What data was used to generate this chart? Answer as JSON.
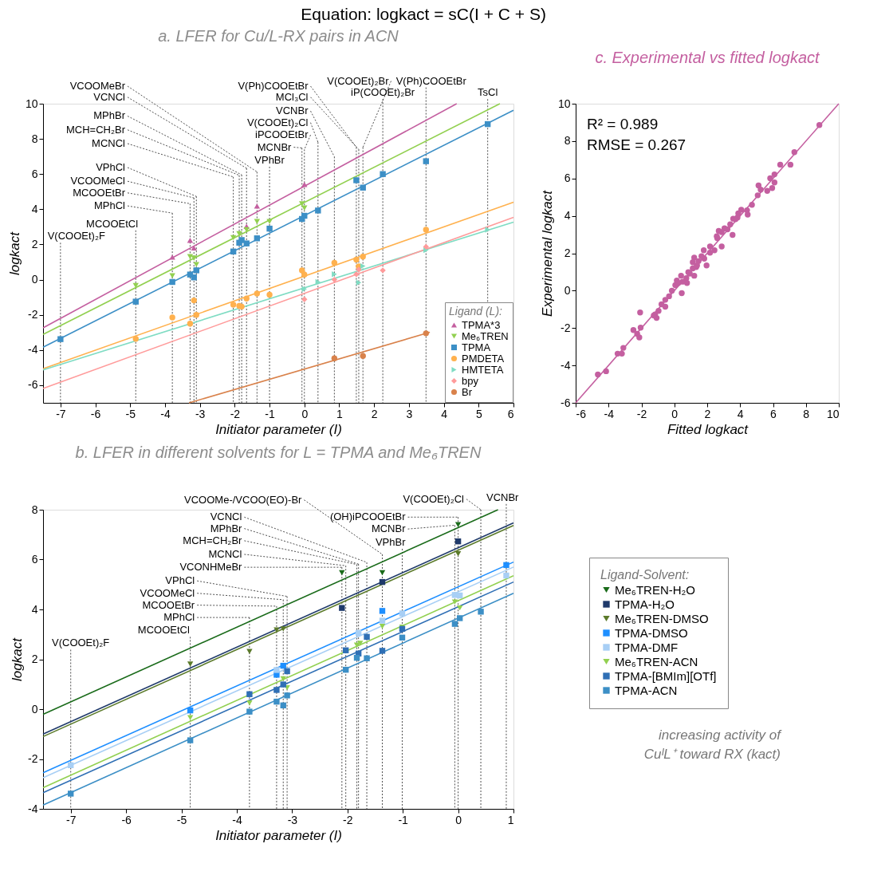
{
  "chart_data": [
    {
      "type": "scatter",
      "title": "a. LFER for Cu/L-RX pairs in ACN",
      "xlabel": "Initiator parameter (I)",
      "ylabel": "logkact",
      "legend_title": "Ligand (L):",
      "legend": "bottom right",
      "xlim": [
        -7.5,
        6
      ],
      "ylim": [
        -7,
        10
      ],
      "xticks": [
        -7,
        -6,
        -5,
        -4,
        -3,
        -2,
        -1,
        0,
        1,
        2,
        3,
        4,
        5,
        6
      ],
      "yticks": [
        -6,
        -4,
        -2,
        0,
        2,
        4,
        6,
        8,
        10
      ],
      "series": [
        {
          "type": "line",
          "color": "#c45fa0",
          "x": [
            -7.5,
            4.37
          ],
          "values": [
            -2.74,
            10
          ]
        },
        {
          "type": "line",
          "color": "#92d050",
          "x": [
            -7.5,
            5.61
          ],
          "values": [
            -3.11,
            10
          ]
        },
        {
          "type": "line",
          "color": "#3c8fc6",
          "x": [
            -7.5,
            6
          ],
          "values": [
            -3.84,
            9.63
          ]
        },
        {
          "type": "line",
          "color": "#ffb14e",
          "x": [
            -7.5,
            6
          ],
          "values": [
            -5.06,
            4.4
          ]
        },
        {
          "type": "line",
          "color": "#7fdcc3",
          "x": [
            -7.5,
            6
          ],
          "values": [
            -5.13,
            3.27
          ]
        },
        {
          "type": "line",
          "color": "#ff9b9b",
          "x": [
            -7.5,
            6
          ],
          "values": [
            -6.18,
            3.54
          ]
        },
        {
          "type": "line",
          "color": "#d9824b",
          "x": [
            -3.31,
            3.6
          ],
          "values": [
            -7,
            -2.99
          ]
        },
        {
          "name": "TPMA*3",
          "color": "#c45fa0",
          "marker": "triangle",
          "x": [
            -3.79,
            -3.28,
            -3.17,
            -1.66,
            -1.36,
            0.0
          ],
          "values": [
            1.28,
            2.24,
            1.8,
            3.03,
            4.18,
            5.41
          ]
        },
        {
          "name": "Me₆TREN",
          "color": "#92d050",
          "marker": "triangle-down",
          "x": [
            -4.84,
            -3.79,
            -3.28,
            -3.17,
            -3.1,
            -2.04,
            -1.87,
            -1.66,
            -1.36,
            -1.0,
            -0.07,
            0.0
          ],
          "values": [
            -0.33,
            0.22,
            1.31,
            1.23,
            0.86,
            2.39,
            2.61,
            2.84,
            3.3,
            3.3,
            4.31,
            4.07
          ]
        },
        {
          "name": "TPMA",
          "color": "#3c8fc6",
          "marker": "square",
          "x": [
            -7.0,
            -4.84,
            -3.79,
            -3.28,
            -3.17,
            -3.1,
            -2.04,
            -1.87,
            -1.8,
            -1.66,
            -1.36,
            -1.0,
            -0.07,
            0.0,
            0.39,
            1.49,
            1.68,
            2.25,
            3.49,
            5.26
          ],
          "values": [
            -3.38,
            -1.25,
            -0.13,
            0.29,
            0.13,
            0.53,
            1.6,
            2.1,
            2.25,
            2.06,
            2.35,
            2.9,
            3.45,
            3.63,
            3.93,
            5.65,
            5.23,
            6.0,
            6.73,
            8.84
          ]
        },
        {
          "name": "PMDETA",
          "color": "#ffb14e",
          "marker": "circle",
          "x": [
            -4.84,
            -3.79,
            -3.28,
            -3.17,
            -3.1,
            -2.04,
            -1.87,
            -1.8,
            -1.66,
            -1.36,
            -1.0,
            -0.07,
            0.0,
            0.86,
            1.49,
            1.56,
            1.68,
            3.49
          ],
          "values": [
            -3.36,
            -2.15,
            -2.5,
            -1.18,
            -2.0,
            -1.42,
            -1.49,
            -1.53,
            -1.07,
            -0.79,
            -0.86,
            0.53,
            0.29,
            0.96,
            1.14,
            0.75,
            1.31,
            2.84
          ]
        },
        {
          "name": "HMTETA",
          "color": "#7fdcc3",
          "marker": "triangle-right",
          "x": [
            0.0,
            0.39,
            0.86,
            1.56,
            1.68,
            3.49,
            5.26
          ],
          "values": [
            -0.53,
            -0.13,
            0.31,
            -0.17,
            0.77,
            1.68,
            2.84
          ]
        },
        {
          "name": "bpy",
          "color": "#ff9b9b",
          "marker": "diamond",
          "x": [
            0.0,
            0.86,
            1.49,
            1.56,
            2.25,
            3.49
          ],
          "values": [
            -1.12,
            0.0,
            0.31,
            0.57,
            0.53,
            1.87
          ]
        },
        {
          "name": "Br",
          "color": "#d9824b",
          "marker": "circle",
          "x": [
            0.86,
            1.68,
            3.49
          ],
          "values": [
            -4.47,
            -4.34,
            -3.05
          ]
        }
      ],
      "ref_lines": [
        {
          "axis": "x",
          "value": -7.0,
          "label": "V(COOEt)₂F",
          "line_style": "dotted"
        },
        {
          "axis": "x",
          "value": -4.84,
          "label": "MCOOEtCl",
          "line_style": "dotted"
        },
        {
          "axis": "x",
          "value": -3.79,
          "label": "MPhCl",
          "line_style": "dotted"
        },
        {
          "axis": "x",
          "value": -3.28,
          "label": "MCOOEtBr",
          "line_style": "dotted"
        },
        {
          "axis": "x",
          "value": -3.17,
          "label": "VCOOMeCl",
          "line_style": "dotted"
        },
        {
          "axis": "x",
          "value": -3.1,
          "label": "VPhCl",
          "line_style": "dotted"
        },
        {
          "axis": "x",
          "value": -2.04,
          "label": "MCNCl",
          "line_style": "dotted"
        },
        {
          "axis": "x",
          "value": -1.87,
          "label": "MCH=CH₂Br",
          "line_style": "dotted"
        },
        {
          "axis": "x",
          "value": -1.8,
          "label": "MPhBr",
          "line_style": "dotted"
        },
        {
          "axis": "x",
          "value": -1.66,
          "label": "VCNCl",
          "line_style": "dotted"
        },
        {
          "axis": "x",
          "value": -1.36,
          "label": "VCOOMeBr",
          "line_style": "dotted"
        },
        {
          "axis": "x",
          "value": -1.0,
          "label": "VPhBr",
          "line_style": "dotted"
        },
        {
          "axis": "x",
          "value": -0.07,
          "label": "MCNBr",
          "line_style": "dotted"
        },
        {
          "axis": "x",
          "value": 0.0,
          "label": "iPCOOEtBr",
          "line_style": "dotted"
        },
        {
          "axis": "x",
          "value": 0.39,
          "label": "V(COOEt)₂Cl",
          "line_style": "dotted"
        },
        {
          "axis": "x",
          "value": 0.86,
          "label": "VCNBr",
          "line_style": "dotted"
        },
        {
          "axis": "x",
          "value": 1.49,
          "label": "V(Ph)COOEtBr",
          "line_style": "dotted"
        },
        {
          "axis": "x",
          "value": 1.56,
          "label": "MCl₃Cl",
          "line_style": "dotted"
        },
        {
          "axis": "x",
          "value": 1.68,
          "label": "V(COOEt)₂Br",
          "line_style": "dotted"
        },
        {
          "axis": "x",
          "value": 2.25,
          "label": "iP(COOEt)₂Br",
          "line_style": "dotted"
        },
        {
          "axis": "x",
          "value": 3.49,
          "label": "V(Ph)COOEtBr",
          "line_style": "dotted"
        },
        {
          "axis": "x",
          "value": 5.26,
          "label": "TsCl",
          "line_style": "dotted"
        }
      ],
      "annotations": [
        "Equation: logkact = sC(I + C + S)"
      ]
    },
    {
      "type": "scatter",
      "title": "c. Experimental vs fitted logkact",
      "xlabel": "Fitted logkact",
      "ylabel": "Experimental logkact",
      "xlim": [
        -6,
        10
      ],
      "ylim": [
        -6,
        10
      ],
      "xticks": [
        -6,
        -4,
        -2,
        0,
        2,
        4,
        6,
        8,
        10
      ],
      "yticks": [
        -6,
        -4,
        -2,
        0,
        2,
        4,
        6,
        8,
        10
      ],
      "series": [
        {
          "type": "line",
          "color": "#c45fa0",
          "x": [
            -6,
            10
          ],
          "values": [
            -6,
            10
          ]
        },
        {
          "color": "#c45fa0",
          "marker": "circle",
          "x": [
            8.82,
            7.3,
            6.44,
            7.06,
            5.83,
            6.09,
            6.09,
            5.95,
            5.12,
            5.25,
            5.65,
            5.07,
            4.72,
            4.42,
            4.46,
            3.89,
            3.84,
            3.58,
            3.4,
            3.54,
            3.05,
            2.88,
            2.7,
            2.58,
            2.88,
            2.44,
            2.17,
            1.82,
            1.96,
            1.79,
            1.47,
            1.21,
            1.12,
            1.33,
            1.21,
            0.85,
            0.73,
            0.41,
            0.5,
            0.15,
            0.06,
            0.45,
            -0.15,
            -0.32,
            -0.55,
            -0.78,
            -0.55,
            -0.96,
            -2.08,
            -1.17,
            -1.08,
            -1.25,
            -2.05,
            -2.49,
            -2.26,
            -2.13,
            -3.1,
            -3.45,
            -3.19,
            -4.15,
            -4.65,
            0.94,
            1.12,
            1.38,
            0.77,
            1.65,
            0.24,
            2.17,
            2.61,
            3.23,
            3.72,
            4.07
          ],
          "values": [
            8.86,
            7.41,
            6.74,
            6.74,
            6.01,
            6.22,
            5.79,
            5.49,
            5.63,
            5.4,
            5.34,
            5.1,
            4.59,
            4.3,
            4.07,
            4.13,
            3.91,
            3.85,
            3.55,
            2.98,
            3.33,
            3.13,
            3.2,
            2.91,
            2.36,
            2.16,
            2.36,
            1.71,
            1.35,
            2.16,
            1.58,
            1.77,
            1.52,
            1.26,
            0.8,
            0.99,
            0.67,
            0.8,
            0.48,
            0.54,
            0.29,
            -0.13,
            0.0,
            -0.3,
            -0.49,
            -0.73,
            -0.86,
            -1.08,
            -1.17,
            -1.27,
            -1.46,
            -1.33,
            -1.98,
            -2.11,
            -2.31,
            -2.5,
            -3.06,
            -3.37,
            -3.37,
            -4.31,
            -4.48,
            0.91,
            1.19,
            1.35,
            0.41,
            1.84,
            0.41,
            2.03,
            2.81,
            3.28,
            3.82,
            4.33
          ]
        }
      ],
      "annotations": [
        "R² = 0.989",
        "RMSE = 0.267"
      ]
    },
    {
      "type": "scatter",
      "title": "b. LFER in different solvents for L = TPMA and Me₆TREN",
      "xlabel": "Initiator parameter (I)",
      "ylabel": "logkact",
      "legend_title": "Ligand-Solvent:",
      "legend": "right",
      "xlim": [
        -7.5,
        1
      ],
      "ylim": [
        -4,
        8
      ],
      "xticks": [
        -7,
        -6,
        -5,
        -4,
        -3,
        -2,
        -1,
        0,
        1
      ],
      "yticks": [
        -4,
        -2,
        0,
        2,
        4,
        6,
        8
      ],
      "series": [
        {
          "type": "line",
          "color": "#1a6b1a",
          "x": [
            -7.5,
            0.72
          ],
          "values": [
            -0.21,
            8
          ]
        },
        {
          "type": "line",
          "color": "#1f3a6b",
          "x": [
            -7.5,
            1
          ],
          "values": [
            -1.0,
            7.47
          ]
        },
        {
          "type": "line",
          "color": "#5b7a2a",
          "x": [
            -7.5,
            1
          ],
          "values": [
            -1.1,
            7.37
          ]
        },
        {
          "type": "line",
          "color": "#1e8fff",
          "x": [
            -7.5,
            1
          ],
          "values": [
            -2.55,
            5.9
          ]
        },
        {
          "type": "line",
          "color": "#a8cff5",
          "x": [
            -7.5,
            1
          ],
          "values": [
            -2.75,
            5.7
          ]
        },
        {
          "type": "line",
          "color": "#92d050",
          "x": [
            -7.5,
            1
          ],
          "values": [
            -3.15,
            5.35
          ]
        },
        {
          "type": "line",
          "color": "#2f6fb5",
          "x": [
            -7.5,
            1
          ],
          "values": [
            -3.35,
            5.1
          ]
        },
        {
          "type": "line",
          "color": "#3c8fc6",
          "x": [
            -7.5,
            1
          ],
          "values": [
            -3.85,
            4.65
          ]
        },
        {
          "name": "Me₆TREN-H₂O",
          "color": "#1a6b1a",
          "marker": "triangle-down",
          "x": [
            -2.1,
            -1.37,
            0.0
          ],
          "values": [
            5.47,
            5.47,
            7.4
          ]
        },
        {
          "name": "TPMA-H₂O",
          "color": "#1f3a6b",
          "marker": "square",
          "x": [
            -2.1,
            -1.37,
            0.0
          ],
          "values": [
            4.06,
            5.1,
            6.73
          ]
        },
        {
          "name": "Me₆TREN-DMSO",
          "color": "#5b7a2a",
          "marker": "triangle-down",
          "x": [
            -4.84,
            -3.77,
            -3.28,
            -3.16,
            0.0
          ],
          "values": [
            1.81,
            2.31,
            3.18,
            3.22,
            6.23
          ]
        },
        {
          "name": "TPMA-DMSO",
          "color": "#1e8fff",
          "marker": "square",
          "x": [
            -4.84,
            -3.28,
            -3.16,
            -1.37,
            0.87
          ],
          "values": [
            -0.05,
            1.38,
            1.74,
            3.94,
            5.78
          ]
        },
        {
          "name": "TPMA-DMF",
          "color": "#a8cff5",
          "marker": "square",
          "x": [
            -7.0,
            -3.28,
            -1.8,
            -1.37,
            -1.01,
            -0.06,
            0.03,
            0.87
          ],
          "values": [
            -2.25,
            1.57,
            3.06,
            3.55,
            3.84,
            4.58,
            4.56,
            5.36
          ]
        },
        {
          "name": "Me₆TREN-ACN",
          "color": "#92d050",
          "marker": "triangle-down",
          "x": [
            -4.84,
            -3.77,
            -3.16,
            -3.09,
            -1.83,
            -1.77,
            -1.37,
            -1.01,
            -0.06,
            0.03
          ],
          "values": [
            -0.34,
            0.25,
            1.22,
            0.86,
            2.57,
            2.64,
            3.32,
            3.29,
            4.3,
            4.06
          ]
        },
        {
          "name": "TPMA-[BMIm][OTf]",
          "color": "#2f6fb5",
          "marker": "square",
          "x": [
            -3.77,
            -3.28,
            -3.16,
            -3.09,
            -2.03,
            -1.8,
            -1.65,
            -1.37,
            -1.01
          ],
          "values": [
            0.6,
            0.77,
            0.99,
            1.52,
            2.36,
            2.23,
            2.9,
            2.34,
            3.22
          ]
        },
        {
          "name": "TPMA-ACN",
          "color": "#3c8fc6",
          "marker": "square",
          "x": [
            -7.0,
            -4.84,
            -3.77,
            -3.28,
            -3.16,
            -3.09,
            -2.03,
            -1.83,
            -1.65,
            -1.01,
            -0.06,
            0.03,
            0.41
          ],
          "values": [
            -3.39,
            -1.25,
            -0.1,
            0.3,
            0.15,
            0.55,
            1.58,
            2.06,
            2.04,
            2.87,
            3.42,
            3.65,
            3.91
          ]
        }
      ],
      "ref_lines": [
        {
          "axis": "x",
          "value": -7.0,
          "label": "V(COOEt)₂F",
          "line_style": "dotted"
        },
        {
          "axis": "x",
          "value": -4.84,
          "label": "MCOOEtCl",
          "line_style": "dotted"
        },
        {
          "axis": "x",
          "value": -3.77,
          "label": "MPhCl",
          "line_style": "dotted"
        },
        {
          "axis": "x",
          "value": -3.28,
          "label": "MCOOEtBr",
          "line_style": "dotted"
        },
        {
          "axis": "x",
          "value": -3.16,
          "label": "VCOOMeCl",
          "line_style": "dotted"
        },
        {
          "axis": "x",
          "value": -3.09,
          "label": "VPhCl",
          "line_style": "dotted"
        },
        {
          "axis": "x",
          "value": -2.1,
          "label": "VCONHMeBr",
          "line_style": "dotted"
        },
        {
          "axis": "x",
          "value": -2.03,
          "label": "MCNCl",
          "line_style": "dotted"
        },
        {
          "axis": "x",
          "value": -1.83,
          "label": "MCH=CH₂Br",
          "line_style": "dotted"
        },
        {
          "axis": "x",
          "value": -1.8,
          "label": "MPhBr",
          "line_style": "dotted"
        },
        {
          "axis": "x",
          "value": -1.65,
          "label": "VCNCl",
          "line_style": "dotted"
        },
        {
          "axis": "x",
          "value": -1.37,
          "label": "VCOOMe-/VCOO(EO)-Br",
          "line_style": "dotted"
        },
        {
          "axis": "x",
          "value": -1.01,
          "label": "VPhBr",
          "line_style": "dotted"
        },
        {
          "axis": "x",
          "value": -0.06,
          "label": "MCNBr",
          "line_style": "dotted"
        },
        {
          "axis": "x",
          "value": 0.0,
          "label": "(OH)iPCOOEtBr",
          "line_style": "dotted"
        },
        {
          "axis": "x",
          "value": 0.41,
          "label": "V(COOEt)₂Cl",
          "line_style": "dotted"
        },
        {
          "axis": "x",
          "value": 0.87,
          "label": "VCNBr",
          "line_style": "dotted"
        }
      ],
      "annotations": [
        "increasing activity of CuᴵL⁺ toward RX (kact)"
      ]
    }
  ]
}
